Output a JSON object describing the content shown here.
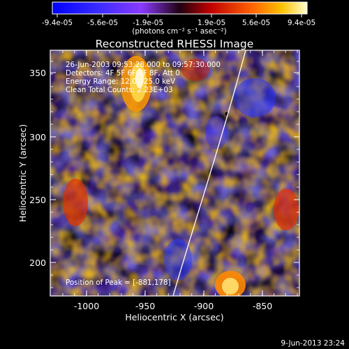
{
  "colorbar": {
    "ticks": [
      "-9.4e-05",
      "-5.6e-05",
      "-1.9e-05",
      "1.9e-05",
      "5.6e-05",
      "9.4e-05"
    ],
    "units": "(photons cm⁻² s⁻¹ asec⁻²)"
  },
  "image": {
    "title": "Reconstructed RHESSI Image",
    "time_range": "26-Jun-2003 09:53:28.000 to 09:57:30.000",
    "detectors": "Detectors: 4F 5F 6F 7F 8F, Att 0",
    "energy": "Energy Range: 12.0 - 25.0 keV",
    "clean": "Clean     Total Counts: 2.23E+03",
    "peak": "Position of Peak = [-881,178]"
  },
  "axes": {
    "xlabel": "Heliocentric X (arcsec)",
    "ylabel": "Heliocentric Y (arcsec)",
    "xticks": [
      "-1000",
      "-950",
      "-900",
      "-850"
    ],
    "yticks": [
      "200",
      "250",
      "300",
      "350"
    ]
  },
  "footer": {
    "timestamp": "9-Jun-2013 23:24"
  }
}
